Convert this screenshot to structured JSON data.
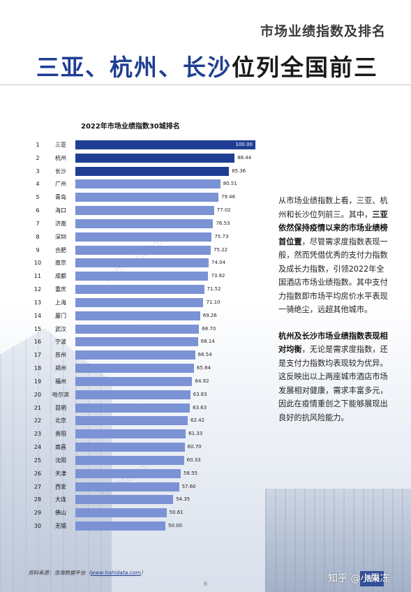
{
  "header": {
    "section_title": "市场业绩指数及排名",
    "headline_blue": "三亚、杭州、长沙",
    "headline_dark": "位列全国前三"
  },
  "chart_data": {
    "type": "bar",
    "title": "2022年市场业绩指数30城排名",
    "orientation": "horizontal",
    "xlim": [
      0,
      100
    ],
    "highlight_color": "#1f3e93",
    "base_color": "#7b92d4",
    "categories": [
      "三亚",
      "杭州",
      "长沙",
      "广州",
      "青岛",
      "海口",
      "济南",
      "深圳",
      "合肥",
      "南京",
      "成都",
      "重庆",
      "上海",
      "厦门",
      "武汉",
      "宁波",
      "苏州",
      "郑州",
      "福州",
      "哈尔滨",
      "昆明",
      "北京",
      "贵阳",
      "南昌",
      "沈阳",
      "天津",
      "西安",
      "大连",
      "佛山",
      "无锡"
    ],
    "ranks": [
      "1",
      "2",
      "3",
      "4",
      "5",
      "6",
      "7",
      "8",
      "9",
      "10",
      "11",
      "12",
      "13",
      "14",
      "15",
      "16",
      "17",
      "18",
      "19",
      "20",
      "21",
      "22",
      "23",
      "24",
      "25",
      "26",
      "27",
      "28",
      "29",
      "30"
    ],
    "values": [
      100.0,
      88.44,
      85.36,
      80.51,
      79.46,
      77.02,
      76.53,
      75.73,
      75.22,
      74.04,
      73.82,
      71.52,
      71.1,
      69.26,
      68.7,
      68.14,
      66.54,
      65.84,
      64.92,
      63.83,
      63.63,
      62.42,
      61.33,
      60.7,
      60.33,
      58.55,
      57.6,
      54.35,
      50.61,
      50.0
    ],
    "value_labels": [
      "100.00",
      "88.44",
      "85.36",
      "80.51",
      "79.46",
      "77.02",
      "76.53",
      "75.73",
      "75.22",
      "74.04",
      "73.82",
      "71.52",
      "71.10",
      "69.26",
      "68.70",
      "68.14",
      "66.54",
      "65.84",
      "64.92",
      "63.83",
      "63.63",
      "62.42",
      "61.33",
      "60.70",
      "60.33",
      "58.55",
      "57.60",
      "54.35",
      "50.61",
      "50.00"
    ]
  },
  "body": {
    "p1_intro": "从市场业绩指数上看，三亚、杭州和长沙位列前三。其中，",
    "p1_bold": "三亚依然保持疫情以来的市场业绩榜首位置",
    "p1_rest": "，尽管需求度指数表现一般，然而凭借优秀的支付力指数及成长力指数，引领2022年全国酒店市场业绩指数。其中支付力指数即市场平均房价水平表现一骑绝尘，远超其他城市。",
    "p2_bold": "杭州及长沙市场业绩指数表现相对均衡",
    "p2_rest": "，无论是需求度指数，还是支付力指数均表现较为优异。这反映出以上两座城市酒店市场发展相对健康，需求丰富多元，因此在疫情重创之下能够展现出良好的抗风险能力。"
  },
  "footer": {
    "source_prefix": "资料来源：浩海数据平台（",
    "source_link": "www.hohidata.com",
    "source_suffix": "）",
    "page_number": "6",
    "watermark_zhihu": "知乎 @小果冻",
    "logo_text": "浩海",
    "watermark_site": "hohidata.com"
  }
}
